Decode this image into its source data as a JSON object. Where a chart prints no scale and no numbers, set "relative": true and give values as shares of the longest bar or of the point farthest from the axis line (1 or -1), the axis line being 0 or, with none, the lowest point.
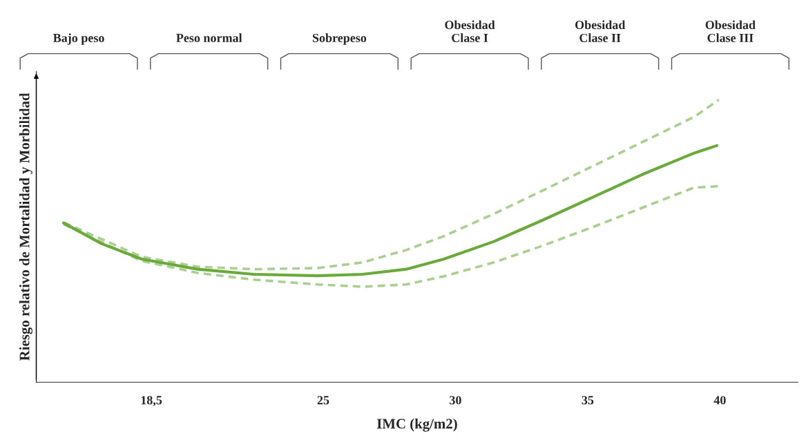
{
  "chart_data": {
    "type": "line",
    "relative": true,
    "xlabel": "IMC (kg/m2)",
    "ylabel": "Riesgo relativo de Mortalidad y Morbilidad",
    "xlim": [
      14.15,
      42.95
    ],
    "xticks": [
      {
        "value": 18.5,
        "label": "18,5"
      },
      25,
      30,
      35,
      40
    ],
    "tick_labels": "x",
    "grid": false,
    "legend": false,
    "series": [
      {
        "color": "#a9d08e",
        "line_style": "dashed",
        "x": [
          15.18,
          18.14,
          20.25,
          22.37,
          24.79,
          26.49,
          28.14,
          29.56,
          31.45,
          33.35,
          35.24,
          37.13,
          39.02,
          39.96
        ],
        "values": [
          0.566,
          0.444,
          0.409,
          0.4,
          0.404,
          0.424,
          0.468,
          0.517,
          0.596,
          0.681,
          0.767,
          0.853,
          0.939,
          1
        ]
      },
      {
        "color": "#a9d08e",
        "line_style": "dashed",
        "x": [
          15.18,
          18.14,
          20.25,
          22.37,
          24.79,
          26.49,
          28.14,
          29.56,
          31.45,
          33.35,
          35.24,
          37.13,
          39.02,
          39.96
        ],
        "values": [
          0.559,
          0.429,
          0.387,
          0.363,
          0.346,
          0.338,
          0.346,
          0.375,
          0.424,
          0.485,
          0.551,
          0.62,
          0.689,
          0.694
        ]
      },
      {
        "color": "#6aaa3a",
        "line_style": "solid",
        "x": [
          15.18,
          16.63,
          18.14,
          20.25,
          22.37,
          24.79,
          26.49,
          28.14,
          29.56,
          31.45,
          33.35,
          35.24,
          37.13,
          39.02,
          39.89
        ],
        "values": [
          0.564,
          0.49,
          0.436,
          0.4,
          0.382,
          0.377,
          0.382,
          0.4,
          0.436,
          0.498,
          0.576,
          0.657,
          0.738,
          0.811,
          0.838
        ]
      }
    ],
    "annotations": [
      "Bajo peso",
      "Peso normal",
      "Sobrepeso",
      "Obesidad\nClase I",
      "Obesidad\nClase II",
      "Obesidad\nClase III"
    ]
  }
}
